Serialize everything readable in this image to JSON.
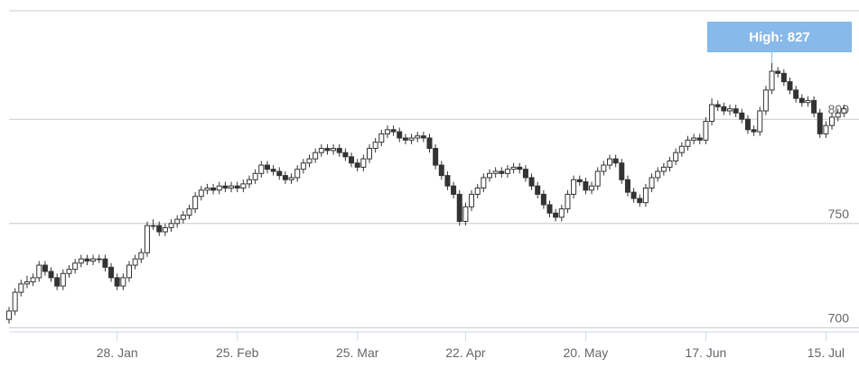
{
  "chart_data": {
    "type": "candlestick",
    "annotation": "High: 827",
    "categories": [
      null,
      null,
      null,
      null,
      null,
      null,
      null,
      null,
      null,
      null,
      null,
      null,
      null,
      null,
      null,
      null,
      null,
      null,
      "28. Jan",
      null,
      null,
      null,
      null,
      null,
      null,
      null,
      null,
      null,
      null,
      null,
      null,
      null,
      null,
      null,
      null,
      null,
      null,
      null,
      "25. Feb",
      null,
      null,
      null,
      null,
      null,
      null,
      null,
      null,
      null,
      null,
      null,
      null,
      null,
      null,
      null,
      null,
      null,
      null,
      null,
      "25. Mar",
      null,
      null,
      null,
      null,
      null,
      null,
      null,
      null,
      null,
      null,
      null,
      null,
      null,
      null,
      null,
      null,
      null,
      "22. Apr",
      null,
      null,
      null,
      null,
      null,
      null,
      null,
      null,
      null,
      null,
      null,
      null,
      null,
      null,
      null,
      null,
      null,
      null,
      null,
      "20. May",
      null,
      null,
      null,
      null,
      null,
      null,
      null,
      null,
      null,
      null,
      null,
      null,
      null,
      null,
      null,
      null,
      null,
      null,
      null,
      "17. Jun",
      null,
      null,
      null,
      null,
      null,
      null,
      null,
      null,
      null,
      null,
      null,
      null,
      null,
      null,
      null,
      null,
      null,
      null,
      null,
      "15. Jul",
      null,
      null,
      null
    ],
    "open": [
      704,
      708,
      717,
      721,
      722,
      724,
      730,
      727,
      724,
      720,
      726,
      728,
      731,
      733,
      732,
      733,
      733,
      729,
      724,
      720,
      724,
      730,
      733,
      736,
      749,
      749,
      746,
      748,
      750,
      752,
      754,
      757,
      763,
      766,
      767,
      766,
      768,
      767,
      768,
      767,
      769,
      771,
      774,
      778,
      776,
      775,
      773,
      771,
      772,
      776,
      779,
      781,
      784,
      786,
      785,
      786,
      784,
      782,
      779,
      777,
      781,
      786,
      789,
      793,
      795,
      794,
      791,
      790,
      791,
      792,
      791,
      786,
      778,
      773,
      768,
      764,
      751,
      758,
      764,
      767,
      772,
      774,
      775,
      774,
      776,
      777,
      776,
      772,
      768,
      764,
      759,
      755,
      753,
      757,
      764,
      771,
      770,
      766,
      768,
      775,
      778,
      781,
      779,
      771,
      765,
      762,
      760,
      767,
      772,
      775,
      777,
      780,
      784,
      787,
      790,
      791,
      790,
      799,
      807,
      806,
      804,
      805,
      803,
      800,
      795,
      794,
      804,
      814,
      823,
      822,
      818,
      814,
      810,
      808,
      809,
      803,
      793,
      797,
      801,
      803
    ],
    "high": [
      710,
      719,
      723,
      725,
      726,
      732,
      732,
      729,
      726,
      728,
      730,
      733,
      735,
      735,
      735,
      735,
      735,
      731,
      726,
      726,
      732,
      735,
      738,
      751,
      752,
      751,
      750,
      752,
      754,
      756,
      759,
      765,
      768,
      769,
      769,
      770,
      770,
      770,
      770,
      771,
      773,
      776,
      780,
      780,
      778,
      777,
      775,
      774,
      778,
      781,
      783,
      786,
      788,
      788,
      788,
      788,
      786,
      784,
      781,
      783,
      788,
      791,
      795,
      797,
      797,
      796,
      793,
      793,
      794,
      794,
      793,
      788,
      780,
      775,
      770,
      766,
      760,
      766,
      769,
      774,
      776,
      777,
      777,
      778,
      779,
      779,
      778,
      774,
      770,
      766,
      761,
      757,
      759,
      766,
      773,
      773,
      772,
      770,
      777,
      780,
      783,
      783,
      781,
      773,
      767,
      764,
      769,
      774,
      777,
      779,
      782,
      786,
      789,
      792,
      793,
      793,
      801,
      810,
      809,
      808,
      807,
      807,
      805,
      802,
      797,
      806,
      816,
      827,
      825,
      824,
      820,
      816,
      812,
      811,
      811,
      805,
      799,
      803,
      805,
      807
    ],
    "low": [
      702,
      706,
      715,
      719,
      720,
      722,
      725,
      722,
      718,
      718,
      724,
      726,
      729,
      730,
      730,
      731,
      727,
      722,
      718,
      718,
      722,
      728,
      731,
      734,
      747,
      744,
      744,
      746,
      748,
      750,
      752,
      755,
      761,
      764,
      764,
      764,
      765,
      765,
      765,
      765,
      767,
      769,
      772,
      774,
      773,
      771,
      769,
      769,
      770,
      774,
      777,
      779,
      782,
      783,
      783,
      782,
      780,
      777,
      775,
      775,
      779,
      784,
      787,
      791,
      792,
      789,
      788,
      788,
      789,
      789,
      784,
      776,
      771,
      766,
      762,
      749,
      749,
      756,
      762,
      765,
      770,
      772,
      772,
      772,
      774,
      774,
      770,
      766,
      762,
      757,
      753,
      751,
      751,
      755,
      762,
      768,
      764,
      764,
      766,
      773,
      776,
      777,
      769,
      763,
      760,
      758,
      758,
      765,
      770,
      773,
      775,
      778,
      782,
      785,
      788,
      788,
      788,
      797,
      804,
      802,
      802,
      801,
      798,
      793,
      792,
      792,
      802,
      812,
      820,
      816,
      812,
      808,
      806,
      806,
      801,
      791,
      791,
      795,
      799,
      801
    ],
    "close": [
      708,
      717,
      721,
      722,
      724,
      730,
      727,
      724,
      720,
      726,
      728,
      731,
      733,
      732,
      733,
      733,
      729,
      724,
      720,
      724,
      730,
      733,
      736,
      749,
      749,
      746,
      748,
      750,
      752,
      754,
      757,
      763,
      766,
      767,
      766,
      768,
      767,
      768,
      767,
      769,
      771,
      774,
      778,
      776,
      775,
      773,
      771,
      772,
      776,
      779,
      781,
      784,
      786,
      785,
      786,
      784,
      782,
      779,
      777,
      781,
      786,
      789,
      793,
      795,
      794,
      791,
      790,
      791,
      792,
      791,
      786,
      778,
      773,
      768,
      764,
      751,
      758,
      764,
      767,
      772,
      774,
      775,
      774,
      776,
      777,
      776,
      772,
      768,
      764,
      759,
      755,
      753,
      757,
      764,
      771,
      770,
      766,
      768,
      775,
      778,
      781,
      779,
      771,
      765,
      762,
      760,
      767,
      772,
      775,
      777,
      780,
      784,
      787,
      790,
      791,
      790,
      799,
      807,
      806,
      804,
      805,
      803,
      800,
      795,
      794,
      804,
      814,
      823,
      822,
      818,
      814,
      810,
      808,
      809,
      803,
      793,
      797,
      801,
      803,
      805
    ],
    "up_color": "#ffffff",
    "down_color": "#333333",
    "ylim": [
      698,
      852
    ],
    "yticks": [
      700,
      750,
      800
    ],
    "grid": true
  }
}
